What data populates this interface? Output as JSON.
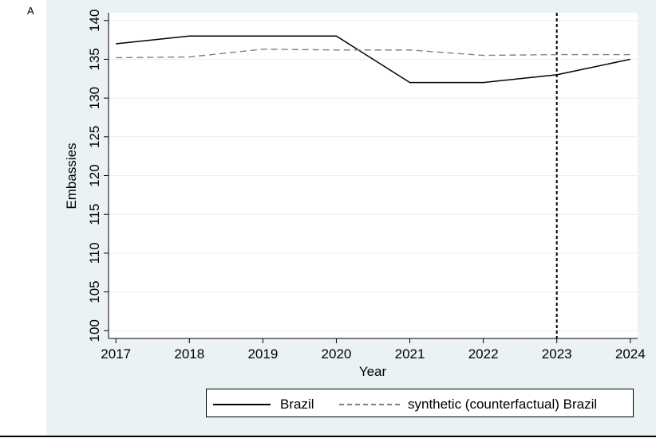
{
  "panel_label": "A",
  "colors": {
    "background": "#eaf2f3",
    "plot_bg": "#ffffff",
    "brazil": "#000000",
    "synthetic": "#808080",
    "grid": "#e8eef0"
  },
  "chart_data": {
    "type": "line",
    "x": [
      2017,
      2018,
      2019,
      2020,
      2021,
      2022,
      2023,
      2024
    ],
    "x_ticks": [
      "2017",
      "2018",
      "2019",
      "2020",
      "2021",
      "2022",
      "2023",
      "2024"
    ],
    "y_ticks": [
      "100",
      "105",
      "110",
      "115",
      "120",
      "125",
      "130",
      "135",
      "140"
    ],
    "series": [
      {
        "name": "Brazil",
        "values": [
          137,
          138,
          138,
          138,
          132,
          132,
          133,
          135
        ],
        "style": "solid"
      },
      {
        "name": "synthetic (counterfactual) Brazil",
        "values": [
          135.2,
          135.3,
          136.3,
          136.2,
          136.2,
          135.5,
          135.6,
          135.6
        ],
        "style": "dashed"
      }
    ],
    "xlabel": "Year",
    "ylabel": "Embassies",
    "xlim": [
      2016.9,
      2024.1
    ],
    "ylim": [
      99,
      141
    ],
    "vline_x": 2023,
    "grid": true,
    "legend": "bottom"
  }
}
